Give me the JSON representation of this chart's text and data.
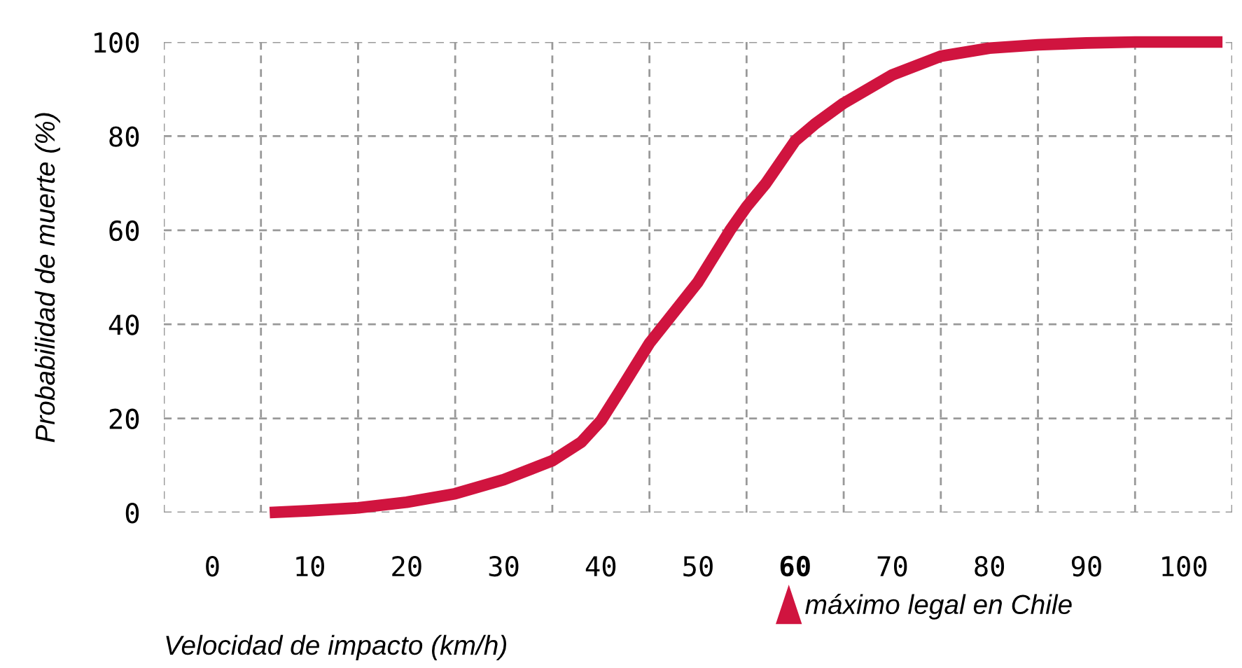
{
  "chart_data": {
    "type": "line",
    "xlabel": "Velocidad de impacto (km/h)",
    "ylabel": "Probabilidad de muerte (%)",
    "x": [
      5.9,
      10,
      15,
      20,
      25,
      30,
      35,
      38,
      40,
      42,
      45,
      50,
      53.3,
      55,
      57,
      60,
      62,
      65,
      70,
      75,
      80,
      85,
      90,
      95,
      104
    ],
    "series": [
      {
        "color": "#d0143f",
        "values": [
          0,
          0.4,
          1,
          2.2,
          4,
          7,
          11,
          15,
          19.5,
          26,
          36,
          49,
          60,
          65,
          70,
          79,
          82.5,
          87,
          93,
          97,
          98.7,
          99.4,
          99.8,
          100,
          100
        ]
      }
    ],
    "xlim": [
      -5,
      105
    ],
    "ylim": [
      0,
      100
    ],
    "xticks": [
      0,
      10,
      20,
      30,
      40,
      50,
      60,
      70,
      80,
      90,
      100,
      {
        "value": -5,
        "label": null
      },
      {
        "value": 5,
        "label": null
      },
      {
        "value": 15,
        "label": null
      },
      {
        "value": 25,
        "label": null
      },
      {
        "value": 35,
        "label": null
      },
      {
        "value": 45,
        "label": null
      },
      {
        "value": 55,
        "label": null
      },
      {
        "value": 65,
        "label": null
      },
      {
        "value": 75,
        "label": null
      },
      {
        "value": 85,
        "label": null
      },
      {
        "value": 95,
        "label": null
      },
      {
        "value": 105,
        "label": null
      }
    ],
    "yticks": [
      0,
      20,
      40,
      60,
      80,
      100
    ],
    "grid": true,
    "line_style": "solid",
    "annotations": [
      "máximo legal en Chile"
    ]
  }
}
